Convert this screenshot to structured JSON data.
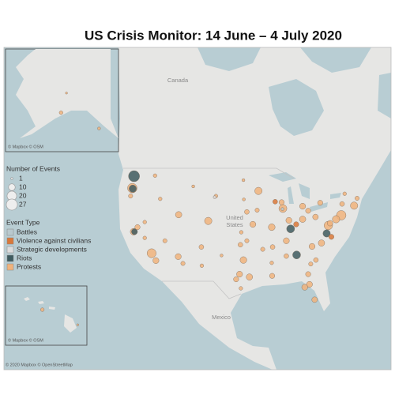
{
  "title": "US Crisis Monitor: 14 June – 4 July 2020",
  "legend": {
    "size_title": "Number of Events",
    "sizes": [
      1,
      10,
      20,
      27
    ],
    "type_title": "Event Type",
    "event_types": [
      {
        "name": "Battles",
        "color": "#b9c9ce"
      },
      {
        "name": "Violence against civilians",
        "color": "#d9783a"
      },
      {
        "name": "Strategic developments",
        "color": "#dcdcdc"
      },
      {
        "name": "Riots",
        "color": "#3e5b5f"
      },
      {
        "name": "Protests",
        "color": "#f0b37c"
      }
    ]
  },
  "map_labels": {
    "canada": "Canada",
    "united_states": [
      "United",
      "States"
    ],
    "mexico": "Mexico"
  },
  "attribution": {
    "alaska": "© Mapbox © OSM",
    "hawaii": "© Mapbox © OSM",
    "main": "© 2020 Mapbox © OpenStreetMap"
  },
  "events": [
    [
      -122.3,
      47.6,
      27,
      3
    ],
    [
      -122.7,
      45.5,
      20,
      4
    ],
    [
      -122.6,
      45.4,
      12,
      3
    ],
    [
      -122.4,
      37.8,
      10,
      4
    ],
    [
      -122.2,
      37.8,
      8,
      3
    ],
    [
      -121.5,
      38.6,
      6,
      4
    ],
    [
      -118.2,
      34.0,
      18,
      4
    ],
    [
      -117.2,
      32.7,
      8,
      4
    ],
    [
      -119.8,
      36.7,
      3,
      4
    ],
    [
      -115.1,
      36.2,
      4,
      4
    ],
    [
      -112.0,
      33.4,
      8,
      4
    ],
    [
      -110.9,
      32.2,
      4,
      4
    ],
    [
      -111.9,
      40.8,
      9,
      4
    ],
    [
      -116.2,
      43.6,
      3,
      4
    ],
    [
      -105.0,
      39.7,
      12,
      4
    ],
    [
      -106.6,
      35.1,
      5,
      4
    ],
    [
      -108.5,
      45.8,
      2,
      4
    ],
    [
      -117.4,
      47.7,
      3,
      4
    ],
    [
      -123.1,
      44.1,
      4,
      4
    ],
    [
      -119.8,
      39.5,
      3,
      4
    ],
    [
      -93.3,
      45.0,
      12,
      4
    ],
    [
      -87.6,
      41.9,
      14,
      4
    ],
    [
      -87.9,
      43.0,
      6,
      4
    ],
    [
      -83.0,
      42.3,
      8,
      4
    ],
    [
      -83.0,
      40.0,
      9,
      4
    ],
    [
      -81.7,
      41.5,
      6,
      4
    ],
    [
      -80.0,
      40.4,
      7,
      4
    ],
    [
      -86.2,
      39.8,
      8,
      4
    ],
    [
      -85.8,
      38.3,
      14,
      3
    ],
    [
      -90.2,
      38.6,
      10,
      4
    ],
    [
      -94.6,
      39.1,
      8,
      4
    ],
    [
      -96.0,
      41.3,
      5,
      4
    ],
    [
      -93.6,
      41.6,
      4,
      4
    ],
    [
      -97.5,
      35.5,
      5,
      4
    ],
    [
      -96.0,
      36.2,
      4,
      4
    ],
    [
      -96.8,
      32.8,
      10,
      4
    ],
    [
      -97.7,
      30.3,
      8,
      4
    ],
    [
      -95.4,
      29.8,
      9,
      4
    ],
    [
      -98.5,
      29.4,
      6,
      4
    ],
    [
      -106.5,
      31.8,
      3,
      4
    ],
    [
      -90.1,
      30.0,
      6,
      4
    ],
    [
      -90.0,
      35.1,
      5,
      4
    ],
    [
      -86.8,
      36.2,
      8,
      4
    ],
    [
      -84.4,
      33.7,
      14,
      3
    ],
    [
      -86.8,
      33.5,
      5,
      4
    ],
    [
      -81.7,
      30.3,
      6,
      4
    ],
    [
      -81.4,
      28.5,
      8,
      4
    ],
    [
      -82.5,
      28.0,
      8,
      4
    ],
    [
      -80.2,
      25.8,
      7,
      4
    ],
    [
      -80.8,
      35.2,
      8,
      4
    ],
    [
      -78.6,
      35.8,
      9,
      4
    ],
    [
      -77.4,
      37.5,
      12,
      3
    ],
    [
      -77.0,
      38.9,
      16,
      4
    ],
    [
      -76.6,
      39.3,
      7,
      4
    ],
    [
      -75.2,
      40.0,
      12,
      4
    ],
    [
      -74.0,
      40.7,
      20,
      4
    ],
    [
      -71.0,
      42.4,
      12,
      4
    ],
    [
      -73.8,
      42.7,
      5,
      4
    ],
    [
      -78.9,
      42.9,
      6,
      4
    ],
    [
      -70.3,
      43.7,
      4,
      4
    ],
    [
      -73.2,
      44.5,
      3,
      4
    ],
    [
      -76.3,
      36.9,
      6,
      1
    ],
    [
      -89.4,
      43.1,
      5,
      1
    ],
    [
      -84.5,
      39.1,
      6,
      1
    ],
    [
      -79.9,
      32.8,
      5,
      4
    ],
    [
      -81.1,
      32.1,
      4,
      4
    ],
    [
      -92.3,
      34.7,
      4,
      4
    ],
    [
      -90.2,
      32.3,
      3,
      4
    ],
    [
      -96.8,
      46.9,
      2,
      4
    ],
    [
      -96.7,
      43.5,
      2,
      4
    ],
    [
      -103.2,
      44.1,
      3,
      4
    ],
    [
      -97.3,
      37.7,
      3,
      4
    ],
    [
      -101.9,
      33.6,
      2,
      4
    ],
    [
      -97.4,
      27.8,
      3,
      4
    ],
    [
      -103.5,
      43.9,
      2,
      2
    ],
    [
      -87.7,
      41.8,
      2,
      0
    ]
  ],
  "alaska_events": [
    [
      -149.9,
      61.2,
      3,
      4
    ],
    [
      -134.4,
      58.3,
      2,
      4
    ],
    [
      -147.7,
      64.8,
      1,
      4
    ]
  ],
  "hawaii_events": [
    [
      -157.9,
      21.3,
      3,
      4
    ],
    [
      -155.1,
      19.7,
      1,
      4
    ]
  ]
}
